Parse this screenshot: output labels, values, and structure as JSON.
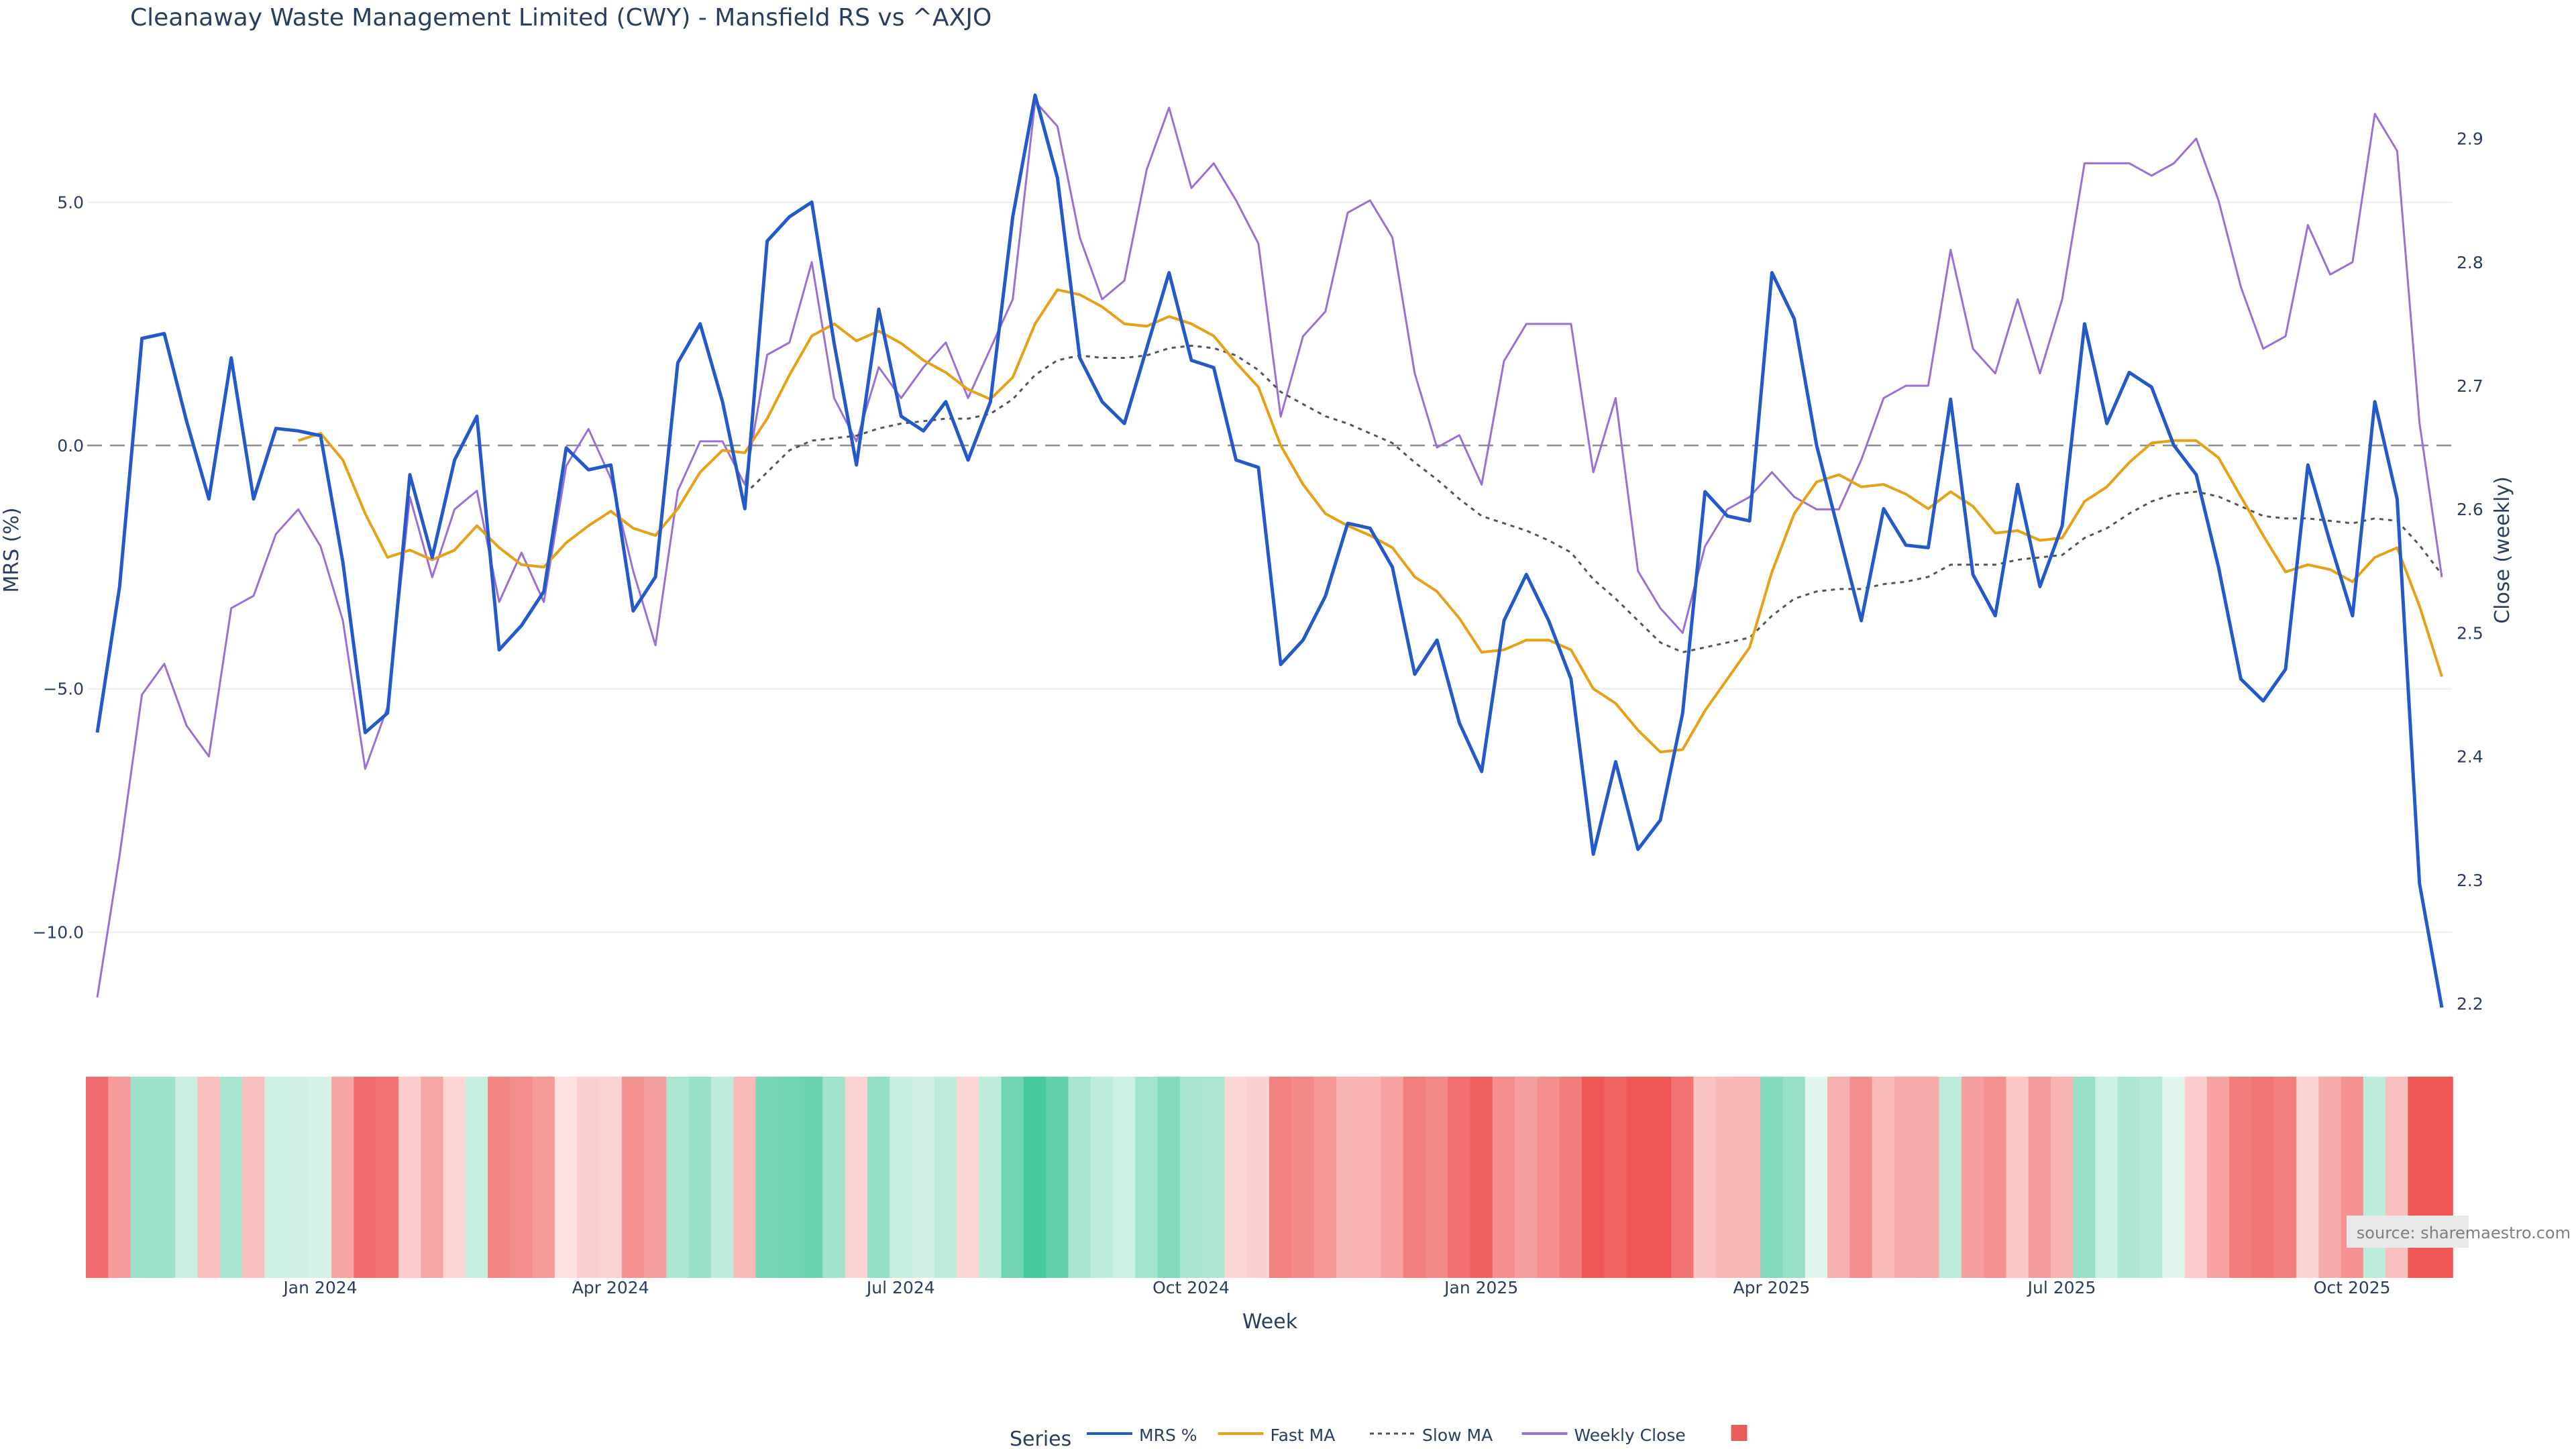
{
  "chart_data": {
    "type": "line",
    "title": "Cleanaway Waste Management Limited (CWY) - Mansfield RS vs ^AXJO",
    "xlabel": "Week",
    "ylabel": "MRS (%)",
    "y2label": "Close (weekly)",
    "ylim": [
      -11.8,
      7.5
    ],
    "y2lim": [
      2.187,
      2.947
    ],
    "y_ticks": [
      5.0,
      0.0,
      -5.0,
      -10.0
    ],
    "y_tick_labels": [
      "5.0",
      "0.0",
      "−5.0",
      "−10.0"
    ],
    "y2_ticks": [
      2.2,
      2.3,
      2.4,
      2.5,
      2.6,
      2.7,
      2.8,
      2.9
    ],
    "y2_tick_labels": [
      "2.2",
      "2.3",
      "2.4",
      "2.5",
      "2.6",
      "2.7",
      "2.8",
      "2.9"
    ],
    "x_ticks": [
      {
        "index": 10,
        "label": "Jan 2024"
      },
      {
        "index": 23,
        "label": "Apr 2024"
      },
      {
        "index": 36,
        "label": "Jul 2024"
      },
      {
        "index": 49,
        "label": "Oct 2024"
      },
      {
        "index": 62,
        "label": "Jan 2025"
      },
      {
        "index": 75,
        "label": "Apr 2025"
      },
      {
        "index": 88,
        "label": "Jul 2025"
      },
      {
        "index": 101,
        "label": "Oct 2025"
      }
    ],
    "reference_line": 0,
    "series": [
      {
        "name": "MRS %",
        "axis": "left",
        "color": "#2359c8",
        "dash": "solid",
        "values": [
          -5.9,
          -2.9,
          2.2,
          2.3,
          0.5,
          -1.1,
          1.8,
          -1.1,
          0.35,
          0.3,
          0.2,
          -2.4,
          -5.9,
          -5.5,
          -0.6,
          -2.3,
          -0.3,
          0.6,
          -4.2,
          -3.7,
          -3.0,
          -0.05,
          -0.5,
          -0.4,
          -3.4,
          -2.7,
          1.7,
          2.5,
          0.9,
          -1.3,
          4.2,
          4.7,
          5.0,
          2.1,
          -0.4,
          2.8,
          0.6,
          0.3,
          0.9,
          -0.3,
          0.9,
          4.7,
          7.2,
          5.5,
          1.8,
          0.9,
          0.45,
          2.0,
          3.55,
          1.75,
          1.6,
          -0.3,
          -0.45,
          -4.5,
          -4.0,
          -3.1,
          -1.6,
          -1.7,
          -2.5,
          -4.7,
          -4.0,
          -5.7,
          -6.7,
          -3.6,
          -2.65,
          -3.6,
          -4.8,
          -8.4,
          -6.5,
          -8.3,
          -7.7,
          -5.5,
          -0.95,
          -1.45,
          -1.55,
          3.55,
          2.6,
          0.0,
          -1.8,
          -3.6,
          -1.3,
          -2.05,
          -2.1,
          0.95,
          -2.65,
          -3.5,
          -0.8,
          -2.9,
          -1.65,
          2.5,
          0.45,
          1.5,
          1.2,
          0.0,
          -0.6,
          -2.5,
          -4.8,
          -5.25,
          -4.6,
          -0.4,
          -2.0,
          -3.5,
          0.9,
          -1.1,
          -9.0,
          -11.55
        ]
      },
      {
        "name": "Fast MA",
        "axis": "left",
        "color": "#e6a117",
        "dash": "solid",
        "values": [
          null,
          null,
          null,
          null,
          null,
          null,
          null,
          null,
          null,
          0.1,
          0.25,
          -0.3,
          -1.4,
          -2.3,
          -2.15,
          -2.35,
          -2.15,
          -1.65,
          -2.1,
          -2.45,
          -2.5,
          -2.0,
          -1.65,
          -1.35,
          -1.7,
          -1.85,
          -1.3,
          -0.55,
          -0.1,
          -0.15,
          0.55,
          1.45,
          2.25,
          2.5,
          2.15,
          2.35,
          2.1,
          1.75,
          1.5,
          1.15,
          0.95,
          1.4,
          2.5,
          3.2,
          3.1,
          2.85,
          2.5,
          2.45,
          2.65,
          2.5,
          2.25,
          1.7,
          1.2,
          0.0,
          -0.8,
          -1.4,
          -1.65,
          -1.85,
          -2.1,
          -2.7,
          -3.0,
          -3.55,
          -4.25,
          -4.2,
          -4.0,
          -4.0,
          -4.2,
          -5.0,
          -5.3,
          -5.85,
          -6.3,
          -6.25,
          -5.45,
          -4.8,
          -4.15,
          -2.6,
          -1.4,
          -0.75,
          -0.6,
          -0.85,
          -0.8,
          -1.0,
          -1.3,
          -0.95,
          -1.25,
          -1.8,
          -1.75,
          -1.95,
          -1.9,
          -1.15,
          -0.85,
          -0.35,
          0.05,
          0.1,
          0.1,
          -0.25,
          -1.05,
          -1.85,
          -2.6,
          -2.45,
          -2.55,
          -2.8,
          -2.3,
          -2.1,
          -3.3,
          -4.75
        ]
      },
      {
        "name": "Slow MA",
        "axis": "left",
        "color": "#555555",
        "dash": "dot",
        "values": [
          null,
          null,
          null,
          null,
          null,
          null,
          null,
          null,
          null,
          null,
          null,
          null,
          null,
          null,
          null,
          null,
          null,
          null,
          null,
          null,
          null,
          null,
          null,
          null,
          null,
          null,
          null,
          null,
          null,
          -1.0,
          -0.55,
          -0.1,
          0.1,
          0.15,
          0.2,
          0.35,
          0.45,
          0.5,
          0.55,
          0.55,
          0.65,
          0.95,
          1.45,
          1.75,
          1.85,
          1.8,
          1.8,
          1.85,
          2.0,
          2.05,
          2.0,
          1.85,
          1.55,
          1.1,
          0.85,
          0.6,
          0.45,
          0.25,
          0.05,
          -0.35,
          -0.7,
          -1.1,
          -1.45,
          -1.6,
          -1.75,
          -1.95,
          -2.2,
          -2.75,
          -3.15,
          -3.6,
          -4.05,
          -4.25,
          -4.15,
          -4.05,
          -3.95,
          -3.5,
          -3.15,
          -3.0,
          -2.95,
          -2.95,
          -2.85,
          -2.8,
          -2.7,
          -2.45,
          -2.45,
          -2.45,
          -2.35,
          -2.3,
          -2.25,
          -1.9,
          -1.7,
          -1.4,
          -1.15,
          -1.0,
          -0.95,
          -1.05,
          -1.25,
          -1.45,
          -1.5,
          -1.5,
          -1.55,
          -1.6,
          -1.5,
          -1.55,
          -2.05,
          -2.65
        ]
      },
      {
        "name": "Weekly Close",
        "axis": "right",
        "color": "#9b6fd6",
        "dash": "solid",
        "values": [
          2.205,
          2.32,
          2.45,
          2.475,
          2.425,
          2.4,
          2.52,
          2.53,
          2.58,
          2.6,
          2.57,
          2.51,
          2.39,
          2.44,
          2.61,
          2.545,
          2.6,
          2.615,
          2.525,
          2.565,
          2.525,
          2.635,
          2.665,
          2.625,
          2.55,
          2.49,
          2.615,
          2.655,
          2.655,
          2.62,
          2.725,
          2.735,
          2.8,
          2.69,
          2.655,
          2.715,
          2.69,
          2.715,
          2.735,
          2.69,
          2.73,
          2.77,
          2.93,
          2.91,
          2.82,
          2.77,
          2.785,
          2.875,
          2.925,
          2.86,
          2.88,
          2.85,
          2.815,
          2.675,
          2.74,
          2.76,
          2.84,
          2.85,
          2.82,
          2.71,
          2.65,
          2.66,
          2.62,
          2.72,
          2.75,
          2.75,
          2.75,
          2.63,
          2.69,
          2.55,
          2.52,
          2.5,
          2.57,
          2.6,
          2.61,
          2.63,
          2.61,
          2.6,
          2.6,
          2.64,
          2.69,
          2.7,
          2.7,
          2.81,
          2.73,
          2.71,
          2.77,
          2.71,
          2.77,
          2.88,
          2.88,
          2.88,
          2.87,
          2.88,
          2.9,
          2.85,
          2.78,
          2.73,
          2.74,
          2.83,
          2.79,
          2.8,
          2.92,
          2.89,
          2.67,
          2.545
        ]
      }
    ],
    "heatmap_label": "",
    "heatmap_source": "MRS %",
    "legend": {
      "title": "Series",
      "position": "bottom-center",
      "items": [
        {
          "label": "MRS %",
          "color": "#2359c8",
          "style": "solid"
        },
        {
          "label": "Fast MA",
          "color": "#e6a117",
          "style": "solid"
        },
        {
          "label": "Slow MA",
          "color": "#555555",
          "style": "dot"
        },
        {
          "label": "Weekly Close",
          "color": "#9b6fd6",
          "style": "solid"
        },
        {
          "label": "",
          "color": "#e85c5c",
          "style": "square"
        }
      ]
    },
    "watermark": "source: sharemaestro.com"
  }
}
